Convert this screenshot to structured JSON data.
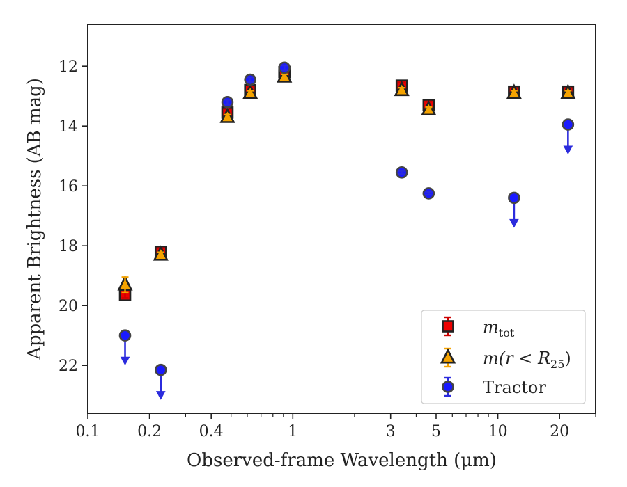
{
  "chart_data": {
    "type": "scatter",
    "title": "",
    "xlabel": "Observed-frame Wavelength (μm)",
    "ylabel": "Apparent Brightness (AB mag)",
    "xscale": "log",
    "xlim": [
      0.1,
      30
    ],
    "ylim": [
      23.6,
      10.6
    ],
    "y_inverted": true,
    "x_major_ticks": [
      0.1,
      0.2,
      0.4,
      1,
      3,
      5,
      10,
      20
    ],
    "x_major_tick_labels": [
      "0.1",
      "0.2",
      "0.4",
      "1",
      "3",
      "5",
      "10",
      "20"
    ],
    "y_major_ticks": [
      12,
      14,
      16,
      18,
      20,
      22
    ],
    "y_major_tick_labels": [
      "12",
      "14",
      "16",
      "18",
      "20",
      "22"
    ],
    "grid": false,
    "legend_position": "bottom-right",
    "legend": [
      {
        "label": "m",
        "subscript": "tot",
        "series": "mtot"
      },
      {
        "label": "m(r < R",
        "subscript": "25",
        "suffix": ")",
        "series": "mr25"
      },
      {
        "label": "Tractor",
        "series": "tractor"
      }
    ],
    "series": [
      {
        "key": "mtot",
        "marker": "square",
        "color": "#ee0000",
        "edge_color": "#222222",
        "errorbar_color": "#cc0000",
        "points": [
          {
            "x": 0.152,
            "y": 19.65,
            "err": 0.1
          },
          {
            "x": 0.227,
            "y": 18.2,
            "err": 0.12
          },
          {
            "x": 0.48,
            "y": 13.55,
            "err": 0.12
          },
          {
            "x": 0.62,
            "y": 12.8,
            "err": 0.12
          },
          {
            "x": 0.91,
            "y": 12.2,
            "err": 0.12
          },
          {
            "x": 3.4,
            "y": 12.65,
            "err": 0.12
          },
          {
            "x": 4.6,
            "y": 13.3,
            "err": 0.12
          },
          {
            "x": 12,
            "y": 12.85,
            "err": 0.12
          },
          {
            "x": 22,
            "y": 12.85,
            "err": 0.12
          }
        ]
      },
      {
        "key": "mr25",
        "marker": "triangle",
        "color": "#f5a300",
        "edge_color": "#222222",
        "errorbar_color": "#f5a300",
        "points": [
          {
            "x": 0.152,
            "y": 19.3,
            "err": 0.25
          },
          {
            "x": 0.227,
            "y": 18.3,
            "err": 0.08
          },
          {
            "x": 0.48,
            "y": 13.7,
            "err": 0.08
          },
          {
            "x": 0.62,
            "y": 12.9,
            "err": 0.08
          },
          {
            "x": 0.91,
            "y": 12.35,
            "err": 0.08
          },
          {
            "x": 3.4,
            "y": 12.8,
            "err": 0.08
          },
          {
            "x": 4.6,
            "y": 13.45,
            "err": 0.08
          },
          {
            "x": 12,
            "y": 12.9,
            "err": 0.08
          },
          {
            "x": 22,
            "y": 12.9,
            "err": 0.08
          }
        ]
      },
      {
        "key": "tractor",
        "marker": "circle",
        "color": "#1a1aff",
        "edge_color": "#444444",
        "errorbar_color": "#2b2bdd",
        "points": [
          {
            "x": 0.152,
            "y": 21.0,
            "upper_limit": true
          },
          {
            "x": 0.227,
            "y": 22.15,
            "upper_limit": true
          },
          {
            "x": 0.48,
            "y": 13.2,
            "err": 0.08
          },
          {
            "x": 0.62,
            "y": 12.45,
            "err": 0.08
          },
          {
            "x": 0.91,
            "y": 12.05,
            "err": 0.08
          },
          {
            "x": 3.4,
            "y": 15.55,
            "err": 0.05
          },
          {
            "x": 4.6,
            "y": 16.25,
            "err": 0.05
          },
          {
            "x": 12,
            "y": 16.4,
            "upper_limit": true
          },
          {
            "x": 22,
            "y": 13.95,
            "upper_limit": true
          }
        ]
      }
    ]
  }
}
